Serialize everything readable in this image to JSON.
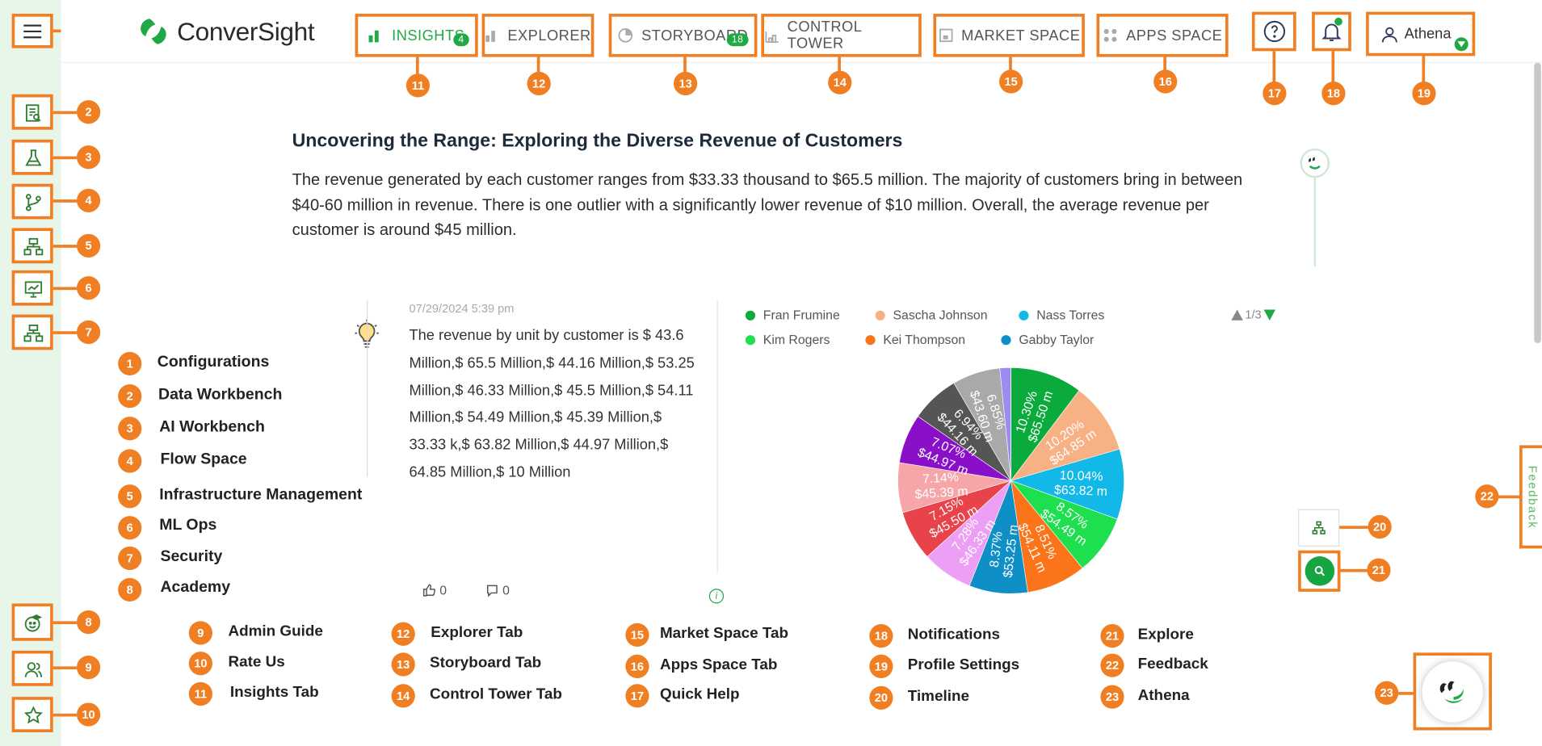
{
  "app": {
    "brand": "ConverSight",
    "brand_mark": "conversight-logo"
  },
  "nav": {
    "tabs": [
      {
        "label": "INSIGHTS",
        "count": "4",
        "active": true,
        "icon": "bar-chart-icon"
      },
      {
        "label": "EXPLORER",
        "icon": "explorer-icon"
      },
      {
        "label": "STORYBOARD",
        "count": "18",
        "icon": "storyboard-icon"
      },
      {
        "label": "CONTROL TOWER",
        "icon": "control-tower-icon"
      },
      {
        "label": "MARKET SPACE",
        "icon": "market-space-icon"
      },
      {
        "label": "APPS SPACE",
        "icon": "apps-space-icon"
      }
    ],
    "user": "Athena"
  },
  "insight": {
    "title": "Uncovering the Range: Exploring the Diverse Revenue of Customers",
    "summary": "The revenue generated by each customer ranges from $33.33 thousand to $65.5 million. The majority of customers bring in between $40-60 million in revenue. There is one outlier with a significantly lower revenue of $10 million. Overall, the average revenue per customer is around $45 million.",
    "date": "07/29/2024 5:39 pm",
    "detail": "The revenue by unit by customer is $ 43.6 Million,$ 65.5 Million,$ 44.16 Million,$ 53.25 Million,$ 46.33 Million,$ 45.5 Million,$ 54.11 Million,$ 54.49 Million,$ 45.39 Million,$ 33.33 k,$ 63.82 Million,$ 44.97 Million,$ 64.85 Million,$ 10 Million",
    "likes": "0",
    "comments": "0",
    "pager": "1/3"
  },
  "chart_data": {
    "type": "pie",
    "legend": [
      "Fran Frumine",
      "Sascha Johnson",
      "Nass Torres",
      "Kim Rogers",
      "Kei Thompson",
      "Gabby Taylor"
    ],
    "slices": [
      {
        "pct": "10.30%",
        "value": "$65.50 m",
        "v": 10.3,
        "color": "#0aab3c"
      },
      {
        "pct": "10.20%",
        "value": "$64.85 m",
        "v": 10.2,
        "color": "#f7b185"
      },
      {
        "pct": "10.04%",
        "value": "$63.82 m",
        "v": 10.04,
        "color": "#12b8e8"
      },
      {
        "pct": "8.57%",
        "value": "$54.49 m",
        "v": 8.57,
        "color": "#1ee04f"
      },
      {
        "pct": "8.51%",
        "value": "$54.11 m",
        "v": 8.51,
        "color": "#fb7419"
      },
      {
        "pct": "8.37%",
        "value": "$53.25 m",
        "v": 8.37,
        "color": "#0e8fc6"
      },
      {
        "pct": "7.28%",
        "value": "$46.33 m",
        "v": 7.28,
        "color": "#ec9ff4"
      },
      {
        "pct": "7.15%",
        "value": "$45.50 m",
        "v": 7.15,
        "color": "#e8434a"
      },
      {
        "pct": "7.14%",
        "value": "$45.39 m",
        "v": 7.14,
        "color": "#f6a6a8"
      },
      {
        "pct": "7.07%",
        "value": "$44.97 m",
        "v": 7.07,
        "color": "#8a0fc9"
      },
      {
        "pct": "6.94%",
        "value": "$44.16 m",
        "v": 6.94,
        "color": "#555555"
      },
      {
        "pct": "6.85%",
        "value": "$43.60 m",
        "v": 6.85,
        "color": "#a9a9a9"
      },
      {
        "pct": "",
        "value": "",
        "v": 1.57,
        "color": "#9b8cf0"
      },
      {
        "pct": "",
        "value": "",
        "v": 0.01,
        "color": "#cccccc"
      }
    ]
  },
  "callouts": {
    "markers": [
      "1",
      "2",
      "3",
      "4",
      "5",
      "6",
      "7",
      "8",
      "9",
      "10",
      "11",
      "12",
      "13",
      "14",
      "15",
      "16",
      "17",
      "18",
      "19",
      "20",
      "21",
      "22",
      "23"
    ],
    "left_legend": [
      {
        "n": "1",
        "label": "Configurations"
      },
      {
        "n": "2",
        "label": "Data Workbench"
      },
      {
        "n": "3",
        "label": "AI Workbench"
      },
      {
        "n": "4",
        "label": "Flow Space"
      },
      {
        "n": "5",
        "label": "Infrastructure Management"
      },
      {
        "n": "6",
        "label": "ML Ops"
      },
      {
        "n": "7",
        "label": "Security"
      },
      {
        "n": "8",
        "label": "Academy"
      }
    ],
    "bottom_legend": [
      {
        "n": "9",
        "label": "Admin Guide"
      },
      {
        "n": "10",
        "label": "Rate Us"
      },
      {
        "n": "11",
        "label": "Insights Tab"
      },
      {
        "n": "12",
        "label": "Explorer Tab"
      },
      {
        "n": "13",
        "label": "Storyboard Tab"
      },
      {
        "n": "14",
        "label": "Control Tower Tab"
      },
      {
        "n": "15",
        "label": "Market Space Tab"
      },
      {
        "n": "16",
        "label": "Apps Space Tab"
      },
      {
        "n": "17",
        "label": "Quick Help"
      },
      {
        "n": "18",
        "label": "Notifications"
      },
      {
        "n": "19",
        "label": "Profile Settings"
      },
      {
        "n": "20",
        "label": "Timeline"
      },
      {
        "n": "21",
        "label": "Explore"
      },
      {
        "n": "22",
        "label": "Feedback"
      },
      {
        "n": "23",
        "label": "Athena"
      }
    ]
  },
  "feedback_label": "Feedback",
  "colors": {
    "accent": "#f07f23",
    "brand_green": "#22a845",
    "sidebar_bg": "#e8f5e9"
  }
}
